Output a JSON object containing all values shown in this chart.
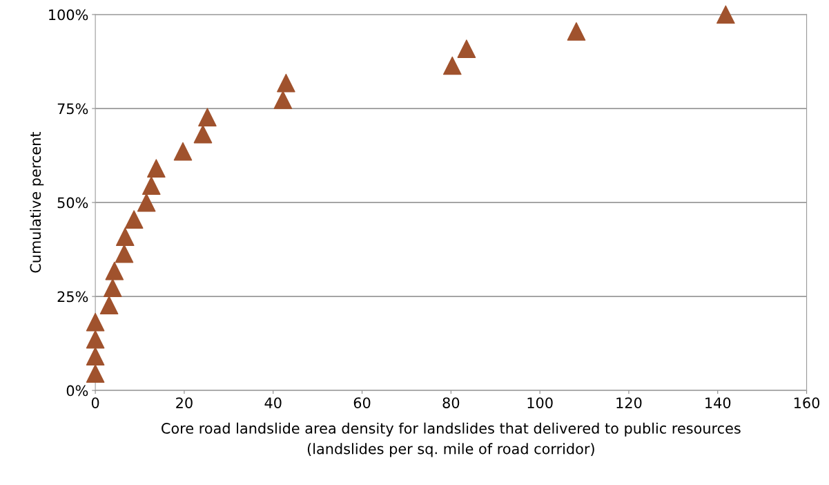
{
  "chart_data": {
    "type": "scatter",
    "xlabel": "Core road landslide area density for landslides that delivered to public resources\n(landslides per sq. mile of road corridor)",
    "ylabel": "Cumulative percent",
    "x": [
      0,
      0,
      0,
      0,
      3.1,
      3.9,
      4.3,
      6.5,
      6.7,
      8.7,
      11.5,
      12.6,
      13.7,
      19.7,
      24.2,
      25.2,
      42.2,
      42.9,
      80.3,
      83.5,
      108.2,
      141.8
    ],
    "series": [
      {
        "color": "#a0522d",
        "values": [
          4.5,
          9.1,
          13.6,
          18.2,
          22.7,
          27.3,
          31.8,
          36.4,
          40.9,
          45.5,
          50.0,
          54.5,
          59.1,
          63.6,
          68.2,
          72.7,
          77.3,
          81.8,
          86.4,
          90.9,
          95.5,
          100.0
        ]
      }
    ],
    "marker": "triangle",
    "grid": "y",
    "legend": false,
    "xlim": [
      0,
      160
    ],
    "xticks": [
      0,
      20,
      40,
      60,
      80,
      100,
      120,
      140,
      160
    ],
    "ylim": [
      0,
      100
    ],
    "yticks": [
      {
        "value": 0,
        "label": "0%"
      },
      {
        "value": 25,
        "label": "25%"
      },
      {
        "value": 50,
        "label": "50%"
      },
      {
        "value": 75,
        "label": "75%"
      },
      {
        "value": 100,
        "label": "100%"
      }
    ]
  }
}
